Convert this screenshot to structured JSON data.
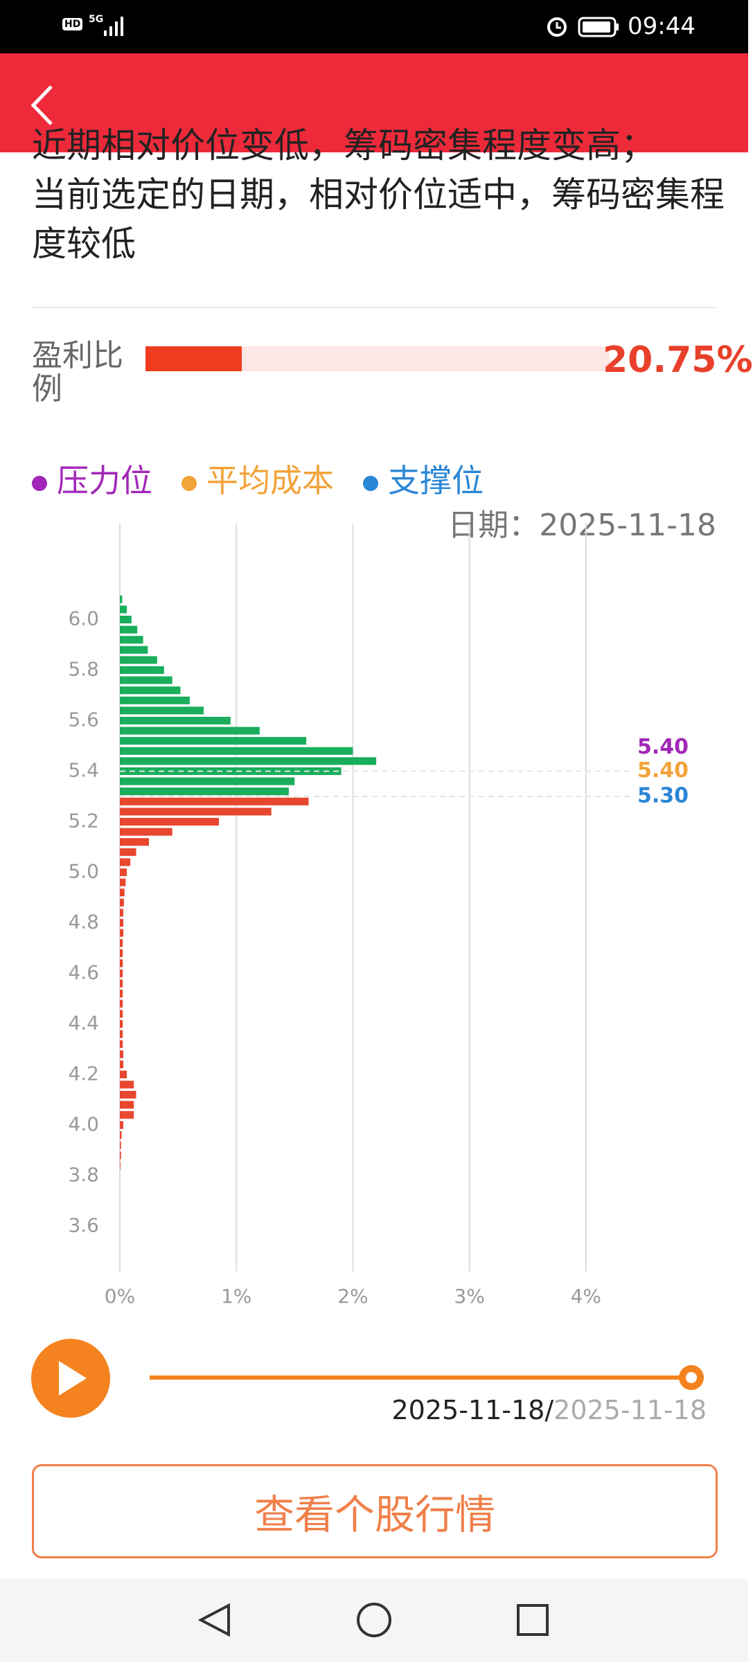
{
  "status_bar": {
    "hd": "HD",
    "network": "5G",
    "time": "09:44"
  },
  "description": {
    "lines": [
      "近期相对价位变低，筹码密集程度变高；",
      "当前选定的日期，相对价位适中，筹码密集程度较低"
    ]
  },
  "profit_ratio": {
    "label": "盈利比例",
    "value": 20.75,
    "value_label": "20.75%"
  },
  "date": {
    "label": "日期：",
    "value": "2025-11-18"
  },
  "chart_data": {
    "type": "bar",
    "orientation": "horizontal",
    "y": [
      3.84,
      3.88,
      3.92,
      3.96,
      4.0,
      4.04,
      4.08,
      4.12,
      4.16,
      4.2,
      4.24,
      4.28,
      4.32,
      4.36,
      4.4,
      4.44,
      4.48,
      4.52,
      4.56,
      4.6,
      4.64,
      4.68,
      4.72,
      4.76,
      4.8,
      4.84,
      4.88,
      4.92,
      4.96,
      5.0,
      5.04,
      5.08,
      5.12,
      5.16,
      5.2,
      5.24,
      5.28,
      5.32,
      5.36,
      5.4,
      5.44,
      5.48,
      5.52,
      5.56,
      5.6,
      5.64,
      5.68,
      5.72,
      5.76,
      5.8,
      5.84,
      5.88,
      5.92,
      5.96,
      6.0,
      6.04,
      6.08
    ],
    "series": [
      {
        "color": "#e8472f",
        "values": [
          0.005,
          0.01,
          0.01,
          0.015,
          0.03,
          0.12,
          0.12,
          0.14,
          0.12,
          0.06,
          0.03,
          0.03,
          0.025,
          0.025,
          0.025,
          0.025,
          0.025,
          0.025,
          0.025,
          0.025,
          0.025,
          0.025,
          0.025,
          0.03,
          0.03,
          0.03,
          0.035,
          0.04,
          0.05,
          0.06,
          0.09,
          0.14,
          0.25,
          0.45,
          0.85,
          1.3,
          1.62,
          null,
          null,
          null,
          null,
          null,
          null,
          null,
          null,
          null,
          null,
          null,
          null,
          null,
          null,
          null,
          null,
          null,
          null,
          null,
          null
        ]
      },
      {
        "color": "#1aae5c",
        "values": [
          null,
          null,
          null,
          null,
          null,
          null,
          null,
          null,
          null,
          null,
          null,
          null,
          null,
          null,
          null,
          null,
          null,
          null,
          null,
          null,
          null,
          null,
          null,
          null,
          null,
          null,
          null,
          null,
          null,
          null,
          null,
          null,
          null,
          null,
          null,
          null,
          null,
          1.45,
          1.5,
          1.9,
          2.2,
          2.0,
          1.6,
          1.2,
          0.95,
          0.72,
          0.6,
          0.52,
          0.45,
          0.38,
          0.32,
          0.24,
          0.2,
          0.15,
          0.1,
          0.06,
          0.02
        ]
      }
    ],
    "ylim": [
      3.42,
      6.27
    ],
    "yticks": [
      3.6,
      3.8,
      {
        "value": 4.0,
        "label": "4.0"
      },
      4.2,
      4.4,
      4.6,
      4.8,
      {
        "value": 5.0,
        "label": "5.0"
      },
      5.2,
      5.4,
      5.6,
      5.8,
      {
        "value": 6.0,
        "label": "6.0"
      }
    ],
    "xlim": [
      0,
      5
    ],
    "xticks": [
      {
        "value": 0,
        "label": "0%"
      },
      {
        "value": 1,
        "label": "1%"
      },
      {
        "value": 2,
        "label": "2%"
      },
      {
        "value": 3,
        "label": "3%"
      },
      {
        "value": 4,
        "label": "4%"
      }
    ],
    "grid": true,
    "levels": [
      {
        "name": "压力位",
        "value": 5.4,
        "value_label": "5.40",
        "color": "#a126b8"
      },
      {
        "name": "平均成本",
        "value": 5.4,
        "value_label": "5.40",
        "color": "#f2a33a"
      },
      {
        "name": "支撑位",
        "value": 5.3,
        "value_label": "5.30",
        "color": "#2a86d6"
      }
    ]
  },
  "timeline": {
    "current": "2025-11-18",
    "separator": "/",
    "end": "2025-11-18"
  },
  "button": {
    "label": "查看个股行情"
  }
}
